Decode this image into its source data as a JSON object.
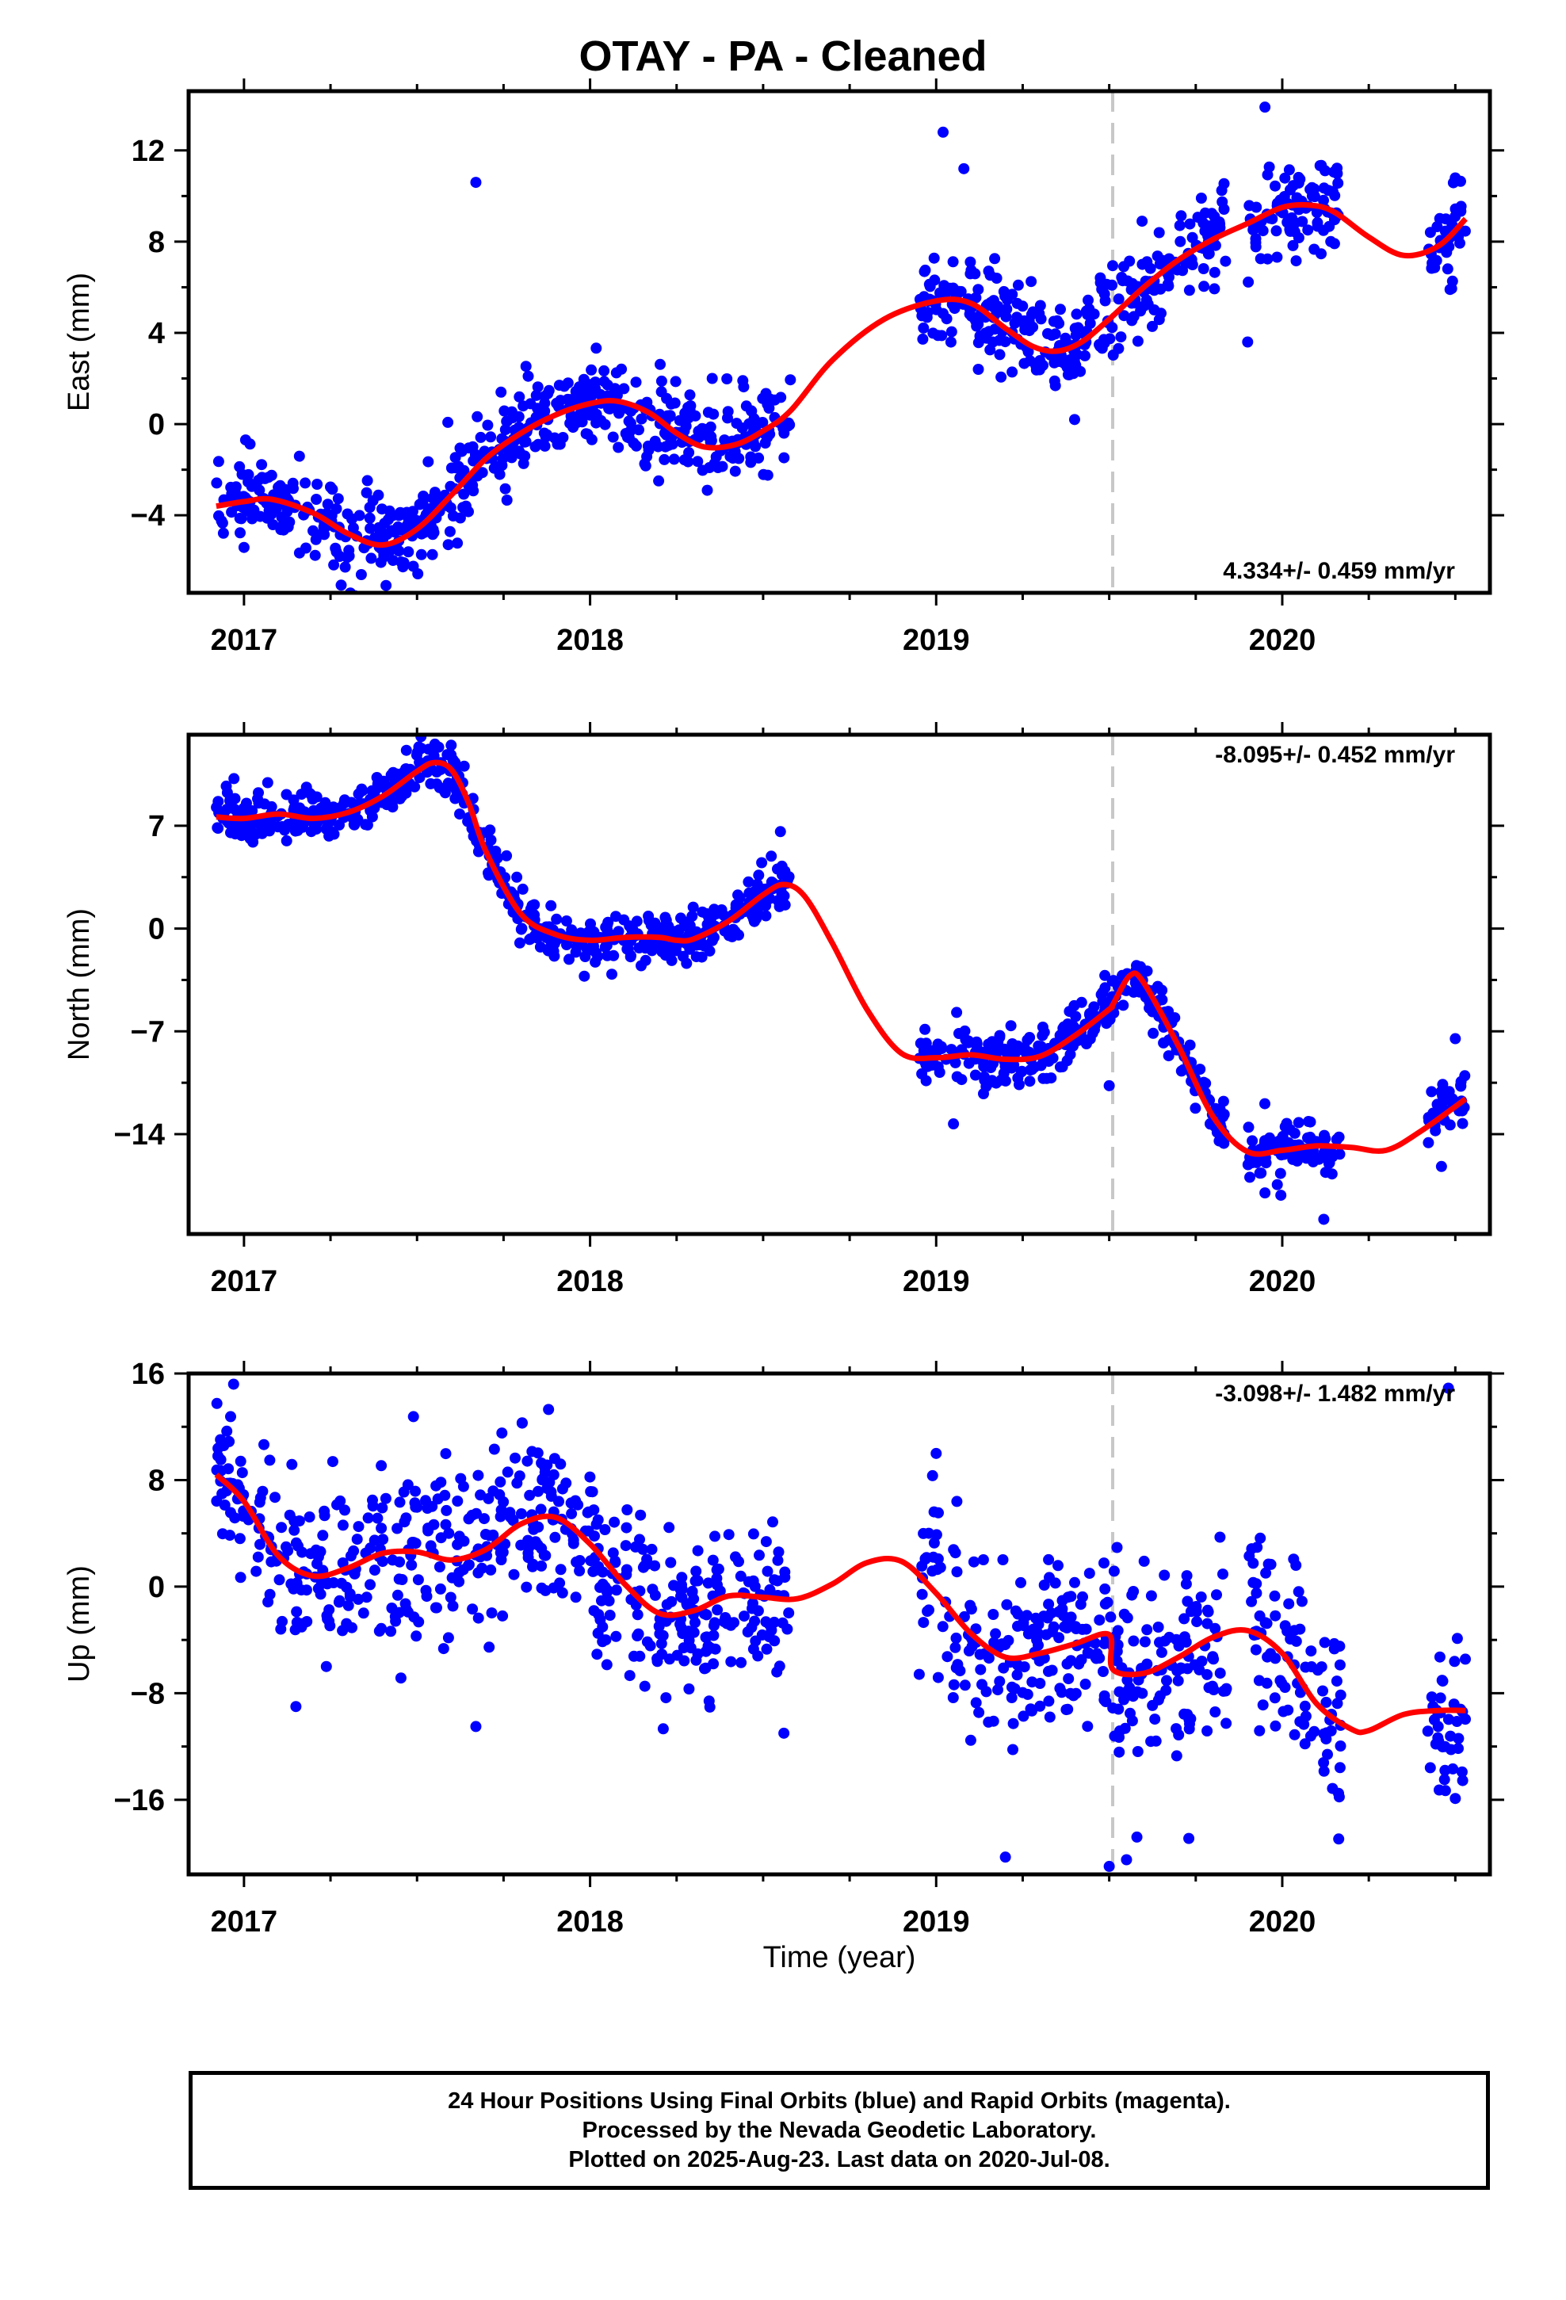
{
  "title": "OTAY  - PA - Cleaned",
  "xlabel": "Time (year)",
  "x_tick_labels": [
    "2017",
    "2018",
    "2019",
    "2020"
  ],
  "caption": {
    "line1": "24 Hour Positions Using Final Orbits (blue) and Rapid Orbits (magenta).",
    "line2": "Processed by the Nevada Geodetic Laboratory.",
    "line3": "Plotted on 2025-Aug-23. Last data on 2020-Jul-08."
  },
  "colors": {
    "points": "#0000ff",
    "fit": "#ff0000",
    "equipment_change": "#c8c8c8",
    "frame": "#000000"
  },
  "chart_data": [
    {
      "type": "scatter",
      "ylabel": "East (mm)",
      "xlim": [
        2016.84,
        2020.6
      ],
      "ylim": [
        -7.4,
        14.6
      ],
      "yticks": [
        -4,
        0,
        4,
        8,
        12
      ],
      "ytick_labels": [
        "−4",
        "0",
        "4",
        "8",
        "12"
      ],
      "rate_text": "4.334+/- 0.459 mm/yr",
      "equipment_change_x": 2019.51,
      "data_segments": [
        [
          2016.92,
          2018.58
        ],
        [
          2018.95,
          2019.84
        ],
        [
          2019.9,
          2020.17
        ],
        [
          2020.42,
          2020.53
        ]
      ],
      "point_scatter_mm": 1.0,
      "outliers": [
        [
          2017.67,
          10.6
        ],
        [
          2019.02,
          12.8
        ],
        [
          2019.9,
          3.6
        ],
        [
          2019.4,
          0.2
        ],
        [
          2019.08,
          11.2
        ],
        [
          2019.95,
          13.9
        ]
      ],
      "fit": {
        "x": [
          2016.92,
          2017.0,
          2017.08,
          2017.2,
          2017.3,
          2017.4,
          2017.5,
          2017.6,
          2017.7,
          2017.8,
          2017.9,
          2018.0,
          2018.08,
          2018.17,
          2018.25,
          2018.33,
          2018.42,
          2018.5,
          2018.58,
          2018.7,
          2018.85,
          2019.0,
          2019.1,
          2019.2,
          2019.28,
          2019.35,
          2019.42,
          2019.5,
          2019.6,
          2019.7,
          2019.8,
          2019.9,
          2020.0,
          2020.08,
          2020.15,
          2020.25,
          2020.35,
          2020.45,
          2020.53
        ],
        "y": [
          -3.6,
          -3.4,
          -3.3,
          -3.9,
          -4.8,
          -5.3,
          -4.6,
          -3.1,
          -1.5,
          -0.4,
          0.4,
          0.9,
          1.0,
          0.5,
          -0.4,
          -1.0,
          -0.9,
          -0.3,
          0.6,
          2.8,
          4.6,
          5.4,
          5.3,
          4.2,
          3.4,
          3.2,
          3.6,
          4.6,
          6.0,
          7.2,
          8.1,
          8.8,
          9.5,
          9.6,
          9.3,
          8.2,
          7.4,
          7.8,
          9.0
        ]
      }
    },
    {
      "type": "scatter",
      "ylabel": "North (mm)",
      "xlim": [
        2016.84,
        2020.6
      ],
      "ylim": [
        -20.8,
        13.2
      ],
      "yticks": [
        -14,
        -7,
        0,
        7
      ],
      "ytick_labels": [
        "−14",
        "−7",
        "0",
        "7"
      ],
      "rate_text": "-8.095+/- 0.452 mm/yr",
      "equipment_change_x": 2019.51,
      "data_segments": [
        [
          2016.92,
          2018.58
        ],
        [
          2018.95,
          2019.84
        ],
        [
          2019.9,
          2020.17
        ],
        [
          2020.42,
          2020.53
        ]
      ],
      "point_scatter_mm": 0.9,
      "outliers": [
        [
          2019.5,
          -10.7
        ],
        [
          2019.95,
          -18.0
        ],
        [
          2020.12,
          -19.8
        ],
        [
          2020.46,
          -16.2
        ],
        [
          2020.5,
          -7.5
        ],
        [
          2018.55,
          6.6
        ],
        [
          2019.05,
          -13.3
        ]
      ],
      "fit": {
        "x": [
          2016.92,
          2017.0,
          2017.1,
          2017.2,
          2017.3,
          2017.4,
          2017.5,
          2017.55,
          2017.6,
          2017.65,
          2017.7,
          2017.8,
          2017.9,
          2018.0,
          2018.1,
          2018.2,
          2018.25,
          2018.3,
          2018.4,
          2018.5,
          2018.56,
          2018.62,
          2018.7,
          2018.8,
          2018.9,
          2019.0,
          2019.1,
          2019.2,
          2019.3,
          2019.4,
          2019.5,
          2019.51,
          2019.56,
          2019.6,
          2019.7,
          2019.8,
          2019.9,
          2020.0,
          2020.1,
          2020.2,
          2020.3,
          2020.4,
          2020.53
        ],
        "y": [
          7.6,
          7.5,
          7.8,
          7.5,
          7.9,
          9.0,
          10.7,
          11.3,
          10.8,
          8.5,
          5.2,
          1.0,
          -0.4,
          -0.8,
          -0.6,
          -0.6,
          -0.8,
          -0.7,
          0.5,
          2.3,
          3.0,
          2.2,
          -1.0,
          -5.5,
          -8.5,
          -8.8,
          -8.6,
          -8.9,
          -8.7,
          -7.3,
          -5.5,
          -5.2,
          -3.2,
          -3.7,
          -8.0,
          -12.8,
          -15.2,
          -15.1,
          -14.8,
          -14.9,
          -15.1,
          -13.8,
          -11.6
        ]
      }
    },
    {
      "type": "scatter",
      "ylabel": "Up (mm)",
      "xlim": [
        2016.84,
        2020.6
      ],
      "ylim": [
        -21.6,
        16.0
      ],
      "yticks": [
        -16,
        -8,
        0,
        8,
        16
      ],
      "ytick_labels": [
        "−16",
        "−8",
        "0",
        "8",
        "16"
      ],
      "rate_text": "-3.098+/- 1.482 mm/yr",
      "equipment_change_x": 2019.51,
      "data_segments": [
        [
          2016.92,
          2018.58
        ],
        [
          2018.95,
          2019.84
        ],
        [
          2019.9,
          2020.17
        ],
        [
          2020.42,
          2020.53
        ]
      ],
      "point_scatter_mm": 3.2,
      "outliers": [
        [
          2016.97,
          15.2
        ],
        [
          2017.15,
          -9.0
        ],
        [
          2017.67,
          -10.5
        ],
        [
          2017.88,
          13.3
        ],
        [
          2018.56,
          -11.0
        ],
        [
          2019.0,
          10.0
        ],
        [
          2019.2,
          -20.3
        ],
        [
          2019.5,
          -21.0
        ],
        [
          2019.55,
          -20.5
        ],
        [
          2019.73,
          -18.9
        ],
        [
          2020.48,
          14.9
        ],
        [
          2020.5,
          -15.9
        ],
        [
          2019.58,
          -18.8
        ]
      ],
      "fit": {
        "x": [
          2016.92,
          2017.0,
          2017.1,
          2017.2,
          2017.3,
          2017.4,
          2017.5,
          2017.6,
          2017.7,
          2017.8,
          2017.9,
          2018.0,
          2018.1,
          2018.2,
          2018.3,
          2018.4,
          2018.5,
          2018.6,
          2018.7,
          2018.8,
          2018.9,
          2019.0,
          2019.1,
          2019.2,
          2019.3,
          2019.4,
          2019.5,
          2019.51,
          2019.6,
          2019.7,
          2019.8,
          2019.9,
          2020.0,
          2020.1,
          2020.2,
          2020.25,
          2020.35,
          2020.45,
          2020.53
        ],
        "y": [
          8.4,
          6.4,
          2.3,
          0.8,
          1.4,
          2.5,
          2.6,
          2.0,
          2.8,
          4.7,
          5.2,
          3.2,
          0.2,
          -2.0,
          -1.8,
          -0.7,
          -0.8,
          -0.9,
          0.2,
          1.8,
          1.9,
          -0.5,
          -3.5,
          -5.3,
          -5.0,
          -4.3,
          -3.6,
          -6.2,
          -6.5,
          -5.3,
          -3.8,
          -3.3,
          -5.0,
          -8.8,
          -10.7,
          -10.8,
          -9.6,
          -9.3,
          -9.3
        ]
      }
    }
  ]
}
